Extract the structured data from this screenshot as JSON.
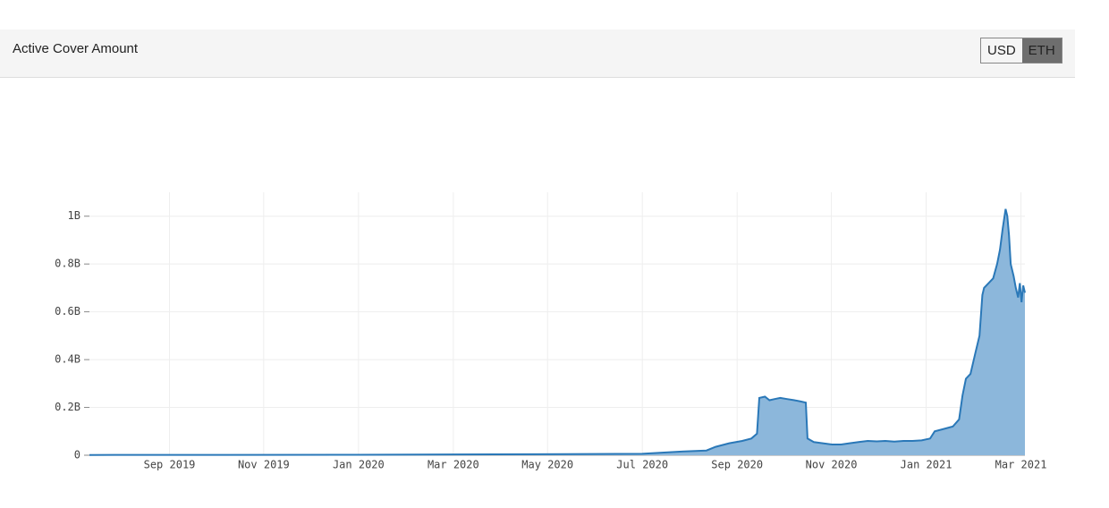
{
  "header": {
    "title": "Active Cover Amount",
    "toggle": [
      "USD",
      "ETH"
    ]
  },
  "chart_data": {
    "type": "area",
    "x": [
      2019.526,
      2019.999,
      2020.314,
      2020.5,
      2020.566,
      2020.613,
      2020.629,
      2020.653,
      2020.676,
      2020.692,
      2020.702,
      2020.706,
      2020.716,
      2020.724,
      2020.733,
      2020.743,
      2020.755,
      2020.768,
      2020.779,
      2020.788,
      2020.791,
      2020.802,
      2020.818,
      2020.834,
      2020.85,
      2020.865,
      2020.881,
      2020.897,
      2020.913,
      2020.928,
      2020.944,
      2020.96,
      2020.976,
      2020.992,
      2021.007,
      2021.015,
      2021.031,
      2021.047,
      2021.058,
      2021.064,
      2021.07,
      2021.078,
      2021.086,
      2021.094,
      2021.099,
      2021.102,
      2021.11,
      2021.118,
      2021.125,
      2021.13,
      2021.135,
      2021.14,
      2021.143,
      2021.146,
      2021.149,
      2021.154,
      2021.158,
      2021.162,
      2021.165,
      2021.168,
      2021.171,
      2021.174
    ],
    "values": [
      1000000,
      2000000,
      4000000,
      6000000,
      15000000,
      20000000,
      35000000,
      50000000,
      60000000,
      70000000,
      90000000,
      240000000,
      245000000,
      230000000,
      235000000,
      240000000,
      235000000,
      230000000,
      225000000,
      220000000,
      70000000,
      55000000,
      50000000,
      45000000,
      45000000,
      50000000,
      55000000,
      60000000,
      58000000,
      60000000,
      57000000,
      60000000,
      60000000,
      62000000,
      70000000,
      100000000,
      110000000,
      120000000,
      150000000,
      250000000,
      320000000,
      340000000,
      420000000,
      500000000,
      670000000,
      700000000,
      720000000,
      740000000,
      800000000,
      860000000,
      950000000,
      1030000000,
      1000000000,
      920000000,
      800000000,
      750000000,
      700000000,
      660000000,
      720000000,
      640000000,
      710000000,
      680000000
    ],
    "color": "#2a78b8",
    "area_color": "#8cb7db",
    "xlim": [
      2019.526,
      2021.174
    ],
    "xticks": [
      {
        "value": 2019.667,
        "label": "Sep 2019"
      },
      {
        "value": 2019.833,
        "label": "Nov 2019"
      },
      {
        "value": 2020,
        "label": "Jan 2020"
      },
      {
        "value": 2020.167,
        "label": "Mar 2020"
      },
      {
        "value": 2020.333,
        "label": "May 2020"
      },
      {
        "value": 2020.5,
        "label": "Jul 2020"
      },
      {
        "value": 2020.667,
        "label": "Sep 2020"
      },
      {
        "value": 2020.833,
        "label": "Nov 2020"
      },
      {
        "value": 2021,
        "label": "Jan 2021"
      },
      {
        "value": 2021.167,
        "label": "Mar 2021"
      }
    ],
    "ylim": [
      0,
      1100000000
    ],
    "yticks": [
      0,
      {
        "value": 200000000,
        "label": "0.2B"
      },
      {
        "value": 400000000,
        "label": "0.4B"
      },
      {
        "value": 600000000,
        "label": "0.6B"
      },
      {
        "value": 800000000,
        "label": "0.8B"
      },
      {
        "value": 1000000000,
        "label": "1B"
      }
    ],
    "grid": true
  }
}
